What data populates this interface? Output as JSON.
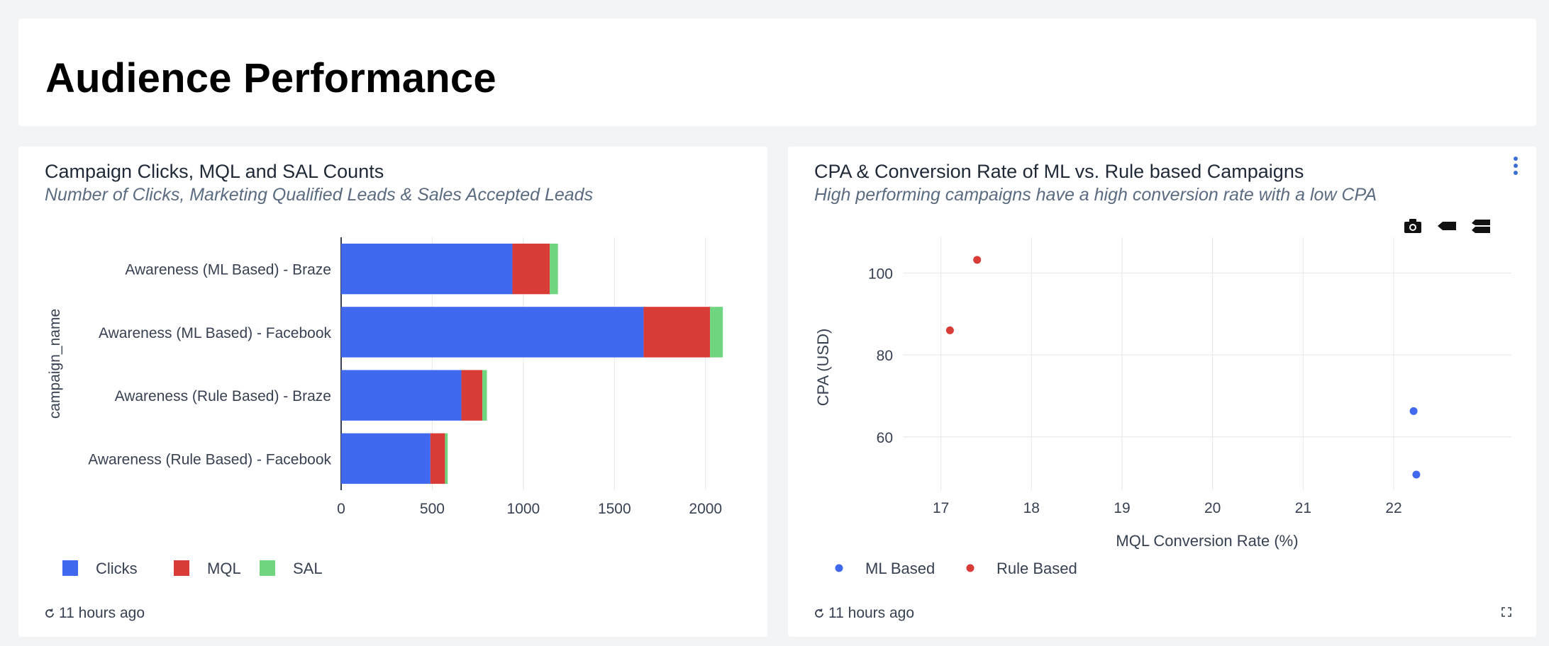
{
  "page": {
    "title": "Audience Performance"
  },
  "left_card": {
    "title": "Campaign Clicks, MQL and SAL Counts",
    "subtitle": "Number of Clicks, Marketing Qualified Leads & Sales Accepted Leads",
    "footer": "11 hours ago"
  },
  "right_card": {
    "title": "CPA & Conversion Rate of ML vs. Rule based Campaigns",
    "subtitle": "High performing campaigns have a high conversion rate with a low CPA",
    "footer": "11 hours ago",
    "icons": [
      "more-options-icon",
      "camera-icon",
      "tag-icon",
      "compare-icon",
      "expand-icon"
    ]
  },
  "colors": {
    "clicks": "#4169f0",
    "mql": "#d93b36",
    "sal": "#6fd67f",
    "ml_based": "#4169f0",
    "rule_based": "#d93b36"
  },
  "chart_data": [
    {
      "type": "bar",
      "orientation": "horizontal",
      "stacked": true,
      "categories": [
        "Awareness (ML Based) - Braze",
        "Awareness (ML Based) - Facebook",
        "Awareness (Rule Based) - Braze",
        "Awareness (Rule Based) - Facebook"
      ],
      "series": [
        {
          "name": "Clicks",
          "values": [
            940,
            1660,
            660,
            490
          ]
        },
        {
          "name": "MQL",
          "values": [
            205,
            365,
            115,
            80
          ]
        },
        {
          "name": "SAL",
          "values": [
            45,
            70,
            25,
            15
          ]
        }
      ],
      "ylabel": "campaign_name",
      "xlim": [
        0,
        2180
      ],
      "xticks": [
        0,
        500,
        1000,
        1500,
        2000
      ],
      "grid": true,
      "legend": "bottom-left"
    },
    {
      "type": "scatter",
      "series": [
        {
          "name": "ML Based",
          "points": [
            [
              22.22,
              66.3
            ],
            [
              22.25,
              50.8
            ]
          ]
        },
        {
          "name": "Rule Based",
          "points": [
            [
              17.4,
              103.2
            ],
            [
              17.1,
              86.0
            ]
          ]
        }
      ],
      "xlabel": "MQL Conversion Rate (%)",
      "ylabel": "CPA (USD)",
      "xlim": [
        16.58,
        23.3
      ],
      "ylim": [
        47,
        108.7
      ],
      "xticks": [
        17,
        18,
        19,
        20,
        21,
        22
      ],
      "yticks": [
        60,
        80,
        100
      ],
      "grid": true,
      "legend": "bottom-left"
    }
  ]
}
